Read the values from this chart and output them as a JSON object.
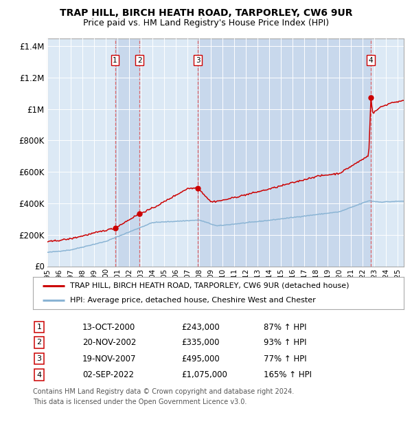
{
  "title1": "TRAP HILL, BIRCH HEATH ROAD, TARPORLEY, CW6 9UR",
  "title2": "Price paid vs. HM Land Registry's House Price Index (HPI)",
  "bg_color": "#dce9f5",
  "legend_line1": "TRAP HILL, BIRCH HEATH ROAD, TARPORLEY, CW6 9UR (detached house)",
  "legend_line2": "HPI: Average price, detached house, Cheshire West and Chester",
  "transactions": [
    {
      "num": 1,
      "date": "13-OCT-2000",
      "price": 243000,
      "price_str": "£243,000",
      "pct": "87%",
      "year": 2000.79
    },
    {
      "num": 2,
      "date": "20-NOV-2002",
      "price": 335000,
      "price_str": "£335,000",
      "pct": "93%",
      "year": 2002.88
    },
    {
      "num": 3,
      "date": "19-NOV-2007",
      "price": 495000,
      "price_str": "£495,000",
      "pct": "77%",
      "year": 2007.88
    },
    {
      "num": 4,
      "date": "02-SEP-2022",
      "price": 1075000,
      "price_str": "£1,075,000",
      "pct": "165%",
      "year": 2022.67
    }
  ],
  "footer1": "Contains HM Land Registry data © Crown copyright and database right 2024.",
  "footer2": "This data is licensed under the Open Government Licence v3.0.",
  "ylim": [
    0,
    1450000
  ],
  "xlim_start": 1995.0,
  "xlim_end": 2025.5,
  "hpi_color": "#8ab4d4",
  "price_color": "#cc0000",
  "dashed_color": "#e05050",
  "shaded_color": "#c8d8ec",
  "grid_color": "#ffffff"
}
